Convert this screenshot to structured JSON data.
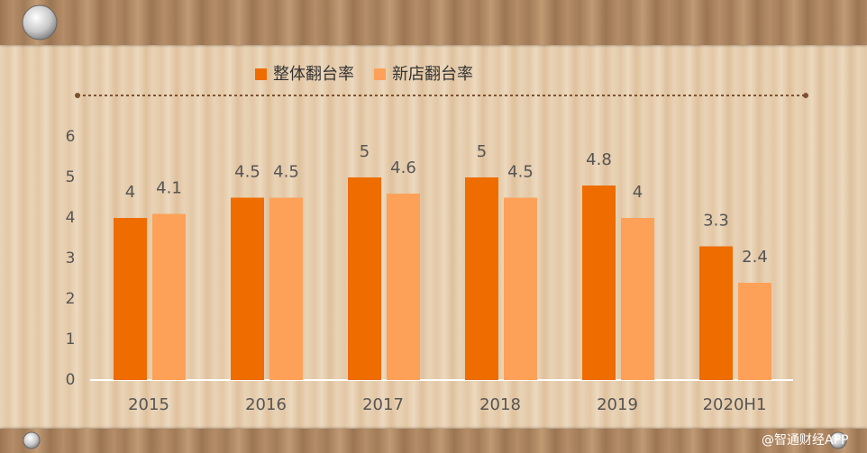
{
  "chart_data": {
    "type": "bar",
    "categories": [
      "2015",
      "2016",
      "2017",
      "2018",
      "2019",
      "2020H1"
    ],
    "series": [
      {
        "name": "整体翻台率",
        "color": "#ee6c00",
        "values": [
          4,
          4.5,
          5,
          5,
          4.8,
          3.3
        ]
      },
      {
        "name": "新店翻台率",
        "color": "#fda158",
        "values": [
          4.1,
          4.5,
          4.6,
          4.5,
          4,
          2.4
        ]
      }
    ],
    "ylim": [
      0,
      6
    ],
    "yticks": [
      0,
      1,
      2,
      3,
      4,
      5,
      6
    ],
    "grid": false,
    "legend": "top"
  },
  "watermark": "@智通财经APP"
}
